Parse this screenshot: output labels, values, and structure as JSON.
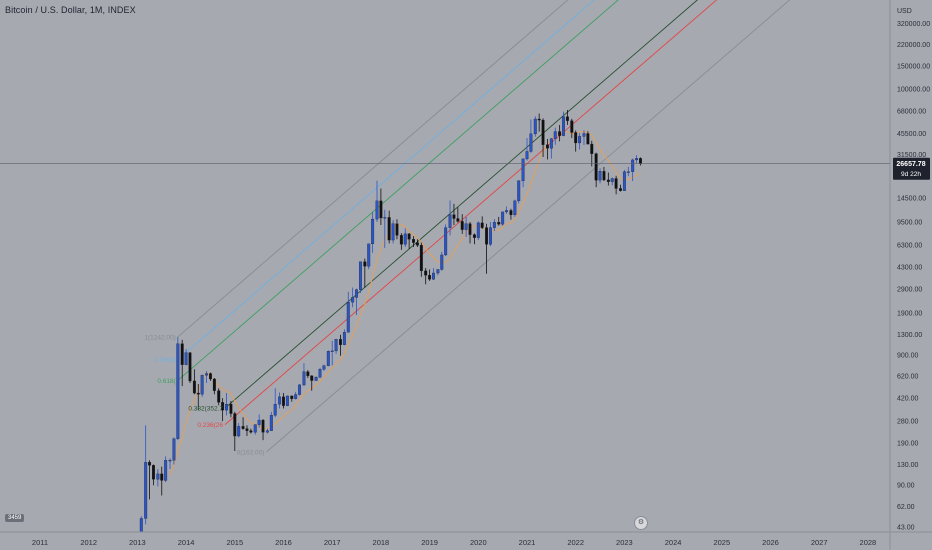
{
  "header": {
    "title": "Bitcoin / U.S. Dollar, 1M, INDEX"
  },
  "footer": {
    "badge": "3459"
  },
  "price_tag": {
    "value": "26657.78",
    "countdown": "9d 22h",
    "color": "#1e222d"
  },
  "colors": {
    "background": "#a7a9b0",
    "bull": "#2a55c8",
    "bear": "#111111",
    "ma": "#e0a060",
    "fib_1": "#888b93",
    "fib_0786": "#6fb0e0",
    "fib_0618": "#3fa060",
    "fib_0382": "#244f2c",
    "fib_0236": "#e04848",
    "fib_0": "#888b93"
  },
  "icons": {
    "settings": "gear-icon"
  },
  "chart_data": {
    "type": "candlestick",
    "y_scale": "log",
    "y_unit": "USD",
    "x_ticks": [
      "2011",
      "2012",
      "2013",
      "2014",
      "2015",
      "2016",
      "2017",
      "2018",
      "2019",
      "2020",
      "2021",
      "2022",
      "2023",
      "2024",
      "2025",
      "2026",
      "2027",
      "2028"
    ],
    "y_ticks": [
      "320000.00",
      "220000.00",
      "150000.00",
      "100000.00",
      "68000.00",
      "45500.00",
      "31500.00",
      "14500.00",
      "9500.00",
      "6300.00",
      "4300.00",
      "2900.00",
      "1900.00",
      "1300.00",
      "900.00",
      "620.00",
      "420.00",
      "280.00",
      "190.00",
      "130.00",
      "90.00",
      "62.00",
      "43.00"
    ],
    "current_price": 26657.78,
    "fib_labels": [
      {
        "level": "1",
        "text": "1(1242.00)",
        "color": "#888b93"
      },
      {
        "level": "0.786",
        "text": "0.786(9",
        "color": "#6fb0e0"
      },
      {
        "level": "0.618",
        "text": "0.618(",
        "color": "#3fa060"
      },
      {
        "level": "0.382",
        "text": "0.382(352.7",
        "color": "#244f2c"
      },
      {
        "level": "0.236",
        "text": "0.236(26",
        "color": "#e04848"
      },
      {
        "level": "0",
        "text": "0(162.00)",
        "color": "#888b93"
      }
    ],
    "candles": [
      {
        "t": 2013.08,
        "o": 20,
        "h": 52,
        "l": 18,
        "c": 50
      },
      {
        "t": 2013.17,
        "o": 50,
        "h": 260,
        "l": 45,
        "c": 135
      },
      {
        "t": 2013.25,
        "o": 135,
        "h": 140,
        "l": 70,
        "c": 128
      },
      {
        "t": 2013.33,
        "o": 128,
        "h": 130,
        "l": 90,
        "c": 100
      },
      {
        "t": 2013.42,
        "o": 100,
        "h": 120,
        "l": 88,
        "c": 110
      },
      {
        "t": 2013.5,
        "o": 110,
        "h": 125,
        "l": 75,
        "c": 98
      },
      {
        "t": 2013.58,
        "o": 98,
        "h": 150,
        "l": 95,
        "c": 140
      },
      {
        "t": 2013.67,
        "o": 140,
        "h": 145,
        "l": 120,
        "c": 140
      },
      {
        "t": 2013.75,
        "o": 140,
        "h": 210,
        "l": 130,
        "c": 205
      },
      {
        "t": 2013.83,
        "o": 205,
        "h": 1242,
        "l": 200,
        "c": 1100
      },
      {
        "t": 2013.92,
        "o": 1100,
        "h": 1180,
        "l": 520,
        "c": 760
      },
      {
        "t": 2014.0,
        "o": 760,
        "h": 1000,
        "l": 750,
        "c": 940
      },
      {
        "t": 2014.08,
        "o": 940,
        "h": 950,
        "l": 550,
        "c": 570
      },
      {
        "t": 2014.17,
        "o": 570,
        "h": 700,
        "l": 450,
        "c": 460
      },
      {
        "t": 2014.25,
        "o": 460,
        "h": 540,
        "l": 340,
        "c": 450
      },
      {
        "t": 2014.33,
        "o": 450,
        "h": 640,
        "l": 430,
        "c": 630
      },
      {
        "t": 2014.42,
        "o": 630,
        "h": 680,
        "l": 550,
        "c": 650
      },
      {
        "t": 2014.5,
        "o": 650,
        "h": 660,
        "l": 570,
        "c": 590
      },
      {
        "t": 2014.58,
        "o": 590,
        "h": 600,
        "l": 450,
        "c": 480
      },
      {
        "t": 2014.67,
        "o": 480,
        "h": 500,
        "l": 370,
        "c": 390
      },
      {
        "t": 2014.75,
        "o": 390,
        "h": 420,
        "l": 280,
        "c": 340
      },
      {
        "t": 2014.83,
        "o": 340,
        "h": 460,
        "l": 310,
        "c": 378
      },
      {
        "t": 2014.92,
        "o": 378,
        "h": 400,
        "l": 300,
        "c": 320
      },
      {
        "t": 2015.0,
        "o": 320,
        "h": 330,
        "l": 165,
        "c": 215
      },
      {
        "t": 2015.08,
        "o": 215,
        "h": 270,
        "l": 210,
        "c": 255
      },
      {
        "t": 2015.17,
        "o": 255,
        "h": 300,
        "l": 240,
        "c": 245
      },
      {
        "t": 2015.25,
        "o": 245,
        "h": 260,
        "l": 215,
        "c": 236
      },
      {
        "t": 2015.33,
        "o": 236,
        "h": 245,
        "l": 225,
        "c": 230
      },
      {
        "t": 2015.42,
        "o": 230,
        "h": 265,
        "l": 220,
        "c": 263
      },
      {
        "t": 2015.5,
        "o": 263,
        "h": 315,
        "l": 250,
        "c": 285
      },
      {
        "t": 2015.58,
        "o": 285,
        "h": 290,
        "l": 200,
        "c": 230
      },
      {
        "t": 2015.67,
        "o": 230,
        "h": 245,
        "l": 225,
        "c": 236
      },
      {
        "t": 2015.75,
        "o": 236,
        "h": 330,
        "l": 235,
        "c": 310
      },
      {
        "t": 2015.83,
        "o": 310,
        "h": 500,
        "l": 300,
        "c": 378
      },
      {
        "t": 2015.92,
        "o": 378,
        "h": 465,
        "l": 350,
        "c": 430
      },
      {
        "t": 2016.0,
        "o": 430,
        "h": 460,
        "l": 350,
        "c": 368
      },
      {
        "t": 2016.08,
        "o": 368,
        "h": 440,
        "l": 365,
        "c": 437
      },
      {
        "t": 2016.17,
        "o": 437,
        "h": 440,
        "l": 395,
        "c": 416
      },
      {
        "t": 2016.25,
        "o": 416,
        "h": 470,
        "l": 410,
        "c": 448
      },
      {
        "t": 2016.33,
        "o": 448,
        "h": 540,
        "l": 440,
        "c": 531
      },
      {
        "t": 2016.42,
        "o": 531,
        "h": 780,
        "l": 520,
        "c": 670
      },
      {
        "t": 2016.5,
        "o": 670,
        "h": 690,
        "l": 600,
        "c": 624
      },
      {
        "t": 2016.58,
        "o": 624,
        "h": 630,
        "l": 480,
        "c": 574
      },
      {
        "t": 2016.67,
        "o": 574,
        "h": 620,
        "l": 570,
        "c": 608
      },
      {
        "t": 2016.75,
        "o": 608,
        "h": 720,
        "l": 600,
        "c": 700
      },
      {
        "t": 2016.83,
        "o": 700,
        "h": 760,
        "l": 680,
        "c": 745
      },
      {
        "t": 2016.92,
        "o": 745,
        "h": 980,
        "l": 740,
        "c": 963
      },
      {
        "t": 2017.0,
        "o": 963,
        "h": 1160,
        "l": 750,
        "c": 970
      },
      {
        "t": 2017.08,
        "o": 970,
        "h": 1200,
        "l": 920,
        "c": 1190
      },
      {
        "t": 2017.17,
        "o": 1190,
        "h": 1290,
        "l": 890,
        "c": 1080
      },
      {
        "t": 2017.25,
        "o": 1080,
        "h": 1420,
        "l": 1070,
        "c": 1350
      },
      {
        "t": 2017.33,
        "o": 1350,
        "h": 2760,
        "l": 1340,
        "c": 2300
      },
      {
        "t": 2017.42,
        "o": 2300,
        "h": 2980,
        "l": 2100,
        "c": 2500
      },
      {
        "t": 2017.5,
        "o": 2500,
        "h": 2920,
        "l": 1830,
        "c": 2870
      },
      {
        "t": 2017.58,
        "o": 2870,
        "h": 4700,
        "l": 2700,
        "c": 4700
      },
      {
        "t": 2017.67,
        "o": 4700,
        "h": 4970,
        "l": 2970,
        "c": 4340
      },
      {
        "t": 2017.75,
        "o": 4340,
        "h": 6470,
        "l": 4120,
        "c": 6450
      },
      {
        "t": 2017.83,
        "o": 6450,
        "h": 11300,
        "l": 5500,
        "c": 10000
      },
      {
        "t": 2017.92,
        "o": 10000,
        "h": 19700,
        "l": 9500,
        "c": 13800
      },
      {
        "t": 2018.0,
        "o": 13800,
        "h": 17200,
        "l": 9000,
        "c": 10200
      },
      {
        "t": 2018.08,
        "o": 10200,
        "h": 11800,
        "l": 6000,
        "c": 10300
      },
      {
        "t": 2018.17,
        "o": 10300,
        "h": 11600,
        "l": 6500,
        "c": 6900
      },
      {
        "t": 2018.25,
        "o": 6900,
        "h": 9800,
        "l": 6500,
        "c": 9200
      },
      {
        "t": 2018.33,
        "o": 9200,
        "h": 9980,
        "l": 7000,
        "c": 7500
      },
      {
        "t": 2018.42,
        "o": 7500,
        "h": 7800,
        "l": 5800,
        "c": 6400
      },
      {
        "t": 2018.5,
        "o": 6400,
        "h": 8500,
        "l": 6100,
        "c": 7700
      },
      {
        "t": 2018.58,
        "o": 7700,
        "h": 7800,
        "l": 5900,
        "c": 7000
      },
      {
        "t": 2018.67,
        "o": 7000,
        "h": 7400,
        "l": 6100,
        "c": 6600
      },
      {
        "t": 2018.75,
        "o": 6600,
        "h": 7000,
        "l": 6100,
        "c": 6300
      },
      {
        "t": 2018.83,
        "o": 6300,
        "h": 6600,
        "l": 3600,
        "c": 4000
      },
      {
        "t": 2018.92,
        "o": 4000,
        "h": 4200,
        "l": 3150,
        "c": 3700
      },
      {
        "t": 2019.0,
        "o": 3700,
        "h": 4100,
        "l": 3350,
        "c": 3450
      },
      {
        "t": 2019.08,
        "o": 3450,
        "h": 4200,
        "l": 3400,
        "c": 3850
      },
      {
        "t": 2019.17,
        "o": 3850,
        "h": 4100,
        "l": 3700,
        "c": 4100
      },
      {
        "t": 2019.25,
        "o": 4100,
        "h": 5600,
        "l": 4000,
        "c": 5300
      },
      {
        "t": 2019.33,
        "o": 5300,
        "h": 9100,
        "l": 5200,
        "c": 8600
      },
      {
        "t": 2019.42,
        "o": 8600,
        "h": 13900,
        "l": 7500,
        "c": 10800
      },
      {
        "t": 2019.5,
        "o": 10800,
        "h": 13100,
        "l": 9000,
        "c": 10100
      },
      {
        "t": 2019.58,
        "o": 10100,
        "h": 12300,
        "l": 9400,
        "c": 9600
      },
      {
        "t": 2019.67,
        "o": 9600,
        "h": 10900,
        "l": 7700,
        "c": 8300
      },
      {
        "t": 2019.75,
        "o": 8300,
        "h": 10400,
        "l": 7300,
        "c": 9200
      },
      {
        "t": 2019.83,
        "o": 9200,
        "h": 9500,
        "l": 6500,
        "c": 7600
      },
      {
        "t": 2019.92,
        "o": 7600,
        "h": 7750,
        "l": 6400,
        "c": 7200
      },
      {
        "t": 2020.0,
        "o": 7200,
        "h": 9600,
        "l": 6900,
        "c": 9350
      },
      {
        "t": 2020.08,
        "o": 9350,
        "h": 10500,
        "l": 8400,
        "c": 8600
      },
      {
        "t": 2020.17,
        "o": 8600,
        "h": 9200,
        "l": 3800,
        "c": 6400
      },
      {
        "t": 2020.25,
        "o": 6400,
        "h": 9500,
        "l": 6200,
        "c": 8600
      },
      {
        "t": 2020.33,
        "o": 8600,
        "h": 10000,
        "l": 8100,
        "c": 9450
      },
      {
        "t": 2020.42,
        "o": 9450,
        "h": 10400,
        "l": 8900,
        "c": 9140
      },
      {
        "t": 2020.5,
        "o": 9140,
        "h": 11400,
        "l": 8900,
        "c": 11350
      },
      {
        "t": 2020.58,
        "o": 11350,
        "h": 12500,
        "l": 11000,
        "c": 11650
      },
      {
        "t": 2020.67,
        "o": 11650,
        "h": 12000,
        "l": 9900,
        "c": 10780
      },
      {
        "t": 2020.75,
        "o": 10780,
        "h": 14100,
        "l": 10400,
        "c": 13800
      },
      {
        "t": 2020.83,
        "o": 13800,
        "h": 19900,
        "l": 13200,
        "c": 19700
      },
      {
        "t": 2020.92,
        "o": 19700,
        "h": 29300,
        "l": 17600,
        "c": 29000
      },
      {
        "t": 2021.0,
        "o": 29000,
        "h": 41900,
        "l": 28200,
        "c": 33100
      },
      {
        "t": 2021.08,
        "o": 33100,
        "h": 58300,
        "l": 32300,
        "c": 45200
      },
      {
        "t": 2021.17,
        "o": 45200,
        "h": 61700,
        "l": 43000,
        "c": 58800
      },
      {
        "t": 2021.25,
        "o": 58800,
        "h": 64800,
        "l": 47000,
        "c": 57700
      },
      {
        "t": 2021.33,
        "o": 57700,
        "h": 59500,
        "l": 30000,
        "c": 37300
      },
      {
        "t": 2021.42,
        "o": 37300,
        "h": 41300,
        "l": 28800,
        "c": 35000
      },
      {
        "t": 2021.5,
        "o": 35000,
        "h": 42000,
        "l": 29200,
        "c": 41500
      },
      {
        "t": 2021.58,
        "o": 41500,
        "h": 50500,
        "l": 37300,
        "c": 47100
      },
      {
        "t": 2021.67,
        "o": 47100,
        "h": 52900,
        "l": 39600,
        "c": 43800
      },
      {
        "t": 2021.75,
        "o": 43800,
        "h": 67000,
        "l": 43300,
        "c": 61300
      },
      {
        "t": 2021.83,
        "o": 61300,
        "h": 69000,
        "l": 53000,
        "c": 57000
      },
      {
        "t": 2021.92,
        "o": 57000,
        "h": 59000,
        "l": 42000,
        "c": 46300
      },
      {
        "t": 2022.0,
        "o": 46300,
        "h": 48000,
        "l": 33000,
        "c": 38500
      },
      {
        "t": 2022.08,
        "o": 38500,
        "h": 45800,
        "l": 34300,
        "c": 43200
      },
      {
        "t": 2022.17,
        "o": 43200,
        "h": 48200,
        "l": 37100,
        "c": 45500
      },
      {
        "t": 2022.25,
        "o": 45500,
        "h": 47400,
        "l": 37600,
        "c": 37700
      },
      {
        "t": 2022.33,
        "o": 37700,
        "h": 40000,
        "l": 25400,
        "c": 31800
      },
      {
        "t": 2022.42,
        "o": 31800,
        "h": 32400,
        "l": 17600,
        "c": 19900
      },
      {
        "t": 2022.5,
        "o": 19900,
        "h": 24600,
        "l": 18800,
        "c": 23300
      },
      {
        "t": 2022.58,
        "o": 23300,
        "h": 25200,
        "l": 19600,
        "c": 20000
      },
      {
        "t": 2022.67,
        "o": 20000,
        "h": 22800,
        "l": 18100,
        "c": 19400
      },
      {
        "t": 2022.75,
        "o": 19400,
        "h": 20900,
        "l": 18200,
        "c": 20500
      },
      {
        "t": 2022.83,
        "o": 20500,
        "h": 21500,
        "l": 15500,
        "c": 17200
      },
      {
        "t": 2022.92,
        "o": 17200,
        "h": 18400,
        "l": 16300,
        "c": 16500
      },
      {
        "t": 2023.0,
        "o": 16500,
        "h": 23900,
        "l": 16500,
        "c": 23100
      },
      {
        "t": 2023.08,
        "o": 23100,
        "h": 25200,
        "l": 21400,
        "c": 23100
      },
      {
        "t": 2023.17,
        "o": 23100,
        "h": 29200,
        "l": 19600,
        "c": 28500
      },
      {
        "t": 2023.25,
        "o": 28500,
        "h": 31000,
        "l": 26900,
        "c": 29300
      },
      {
        "t": 2023.33,
        "o": 29300,
        "h": 29800,
        "l": 25800,
        "c": 26657.78
      }
    ]
  }
}
